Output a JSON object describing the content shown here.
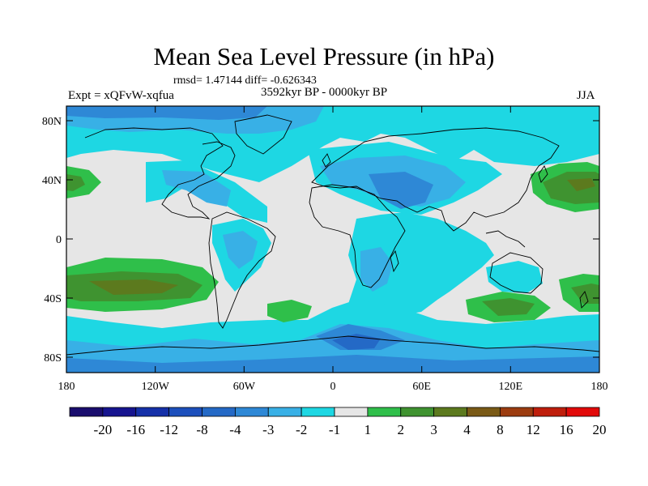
{
  "title": "Mean Sea Level Pressure (in hPa)",
  "stats": "rmsd= 1.47144 diff= -0.626343",
  "experiment": "Expt = xQFvW-xqfua",
  "period": "3592kyr BP - 0000kyr BP",
  "season": "JJA",
  "axes": {
    "y_labels": [
      "80N",
      "40N",
      "0",
      "40S",
      "80S"
    ],
    "x_labels": [
      "180",
      "120W",
      "60W",
      "0",
      "60E",
      "120E",
      "180"
    ]
  },
  "colorbar": {
    "labels": [
      "-20",
      "-16",
      "-12",
      "-8",
      "-4",
      "-3",
      "-2",
      "-1",
      "1",
      "2",
      "3",
      "4",
      "8",
      "12",
      "16",
      "20"
    ],
    "colors": [
      "#1a0d6e",
      "#16148f",
      "#1530a8",
      "#1c4fbc",
      "#2469c6",
      "#2e88d6",
      "#38b0e6",
      "#1ed7e3",
      "#e6e6e6",
      "#2fbf4a",
      "#3f9330",
      "#5c7a1e",
      "#7a5a16",
      "#9c3c10",
      "#bf1e0c",
      "#e20a0a"
    ]
  }
}
